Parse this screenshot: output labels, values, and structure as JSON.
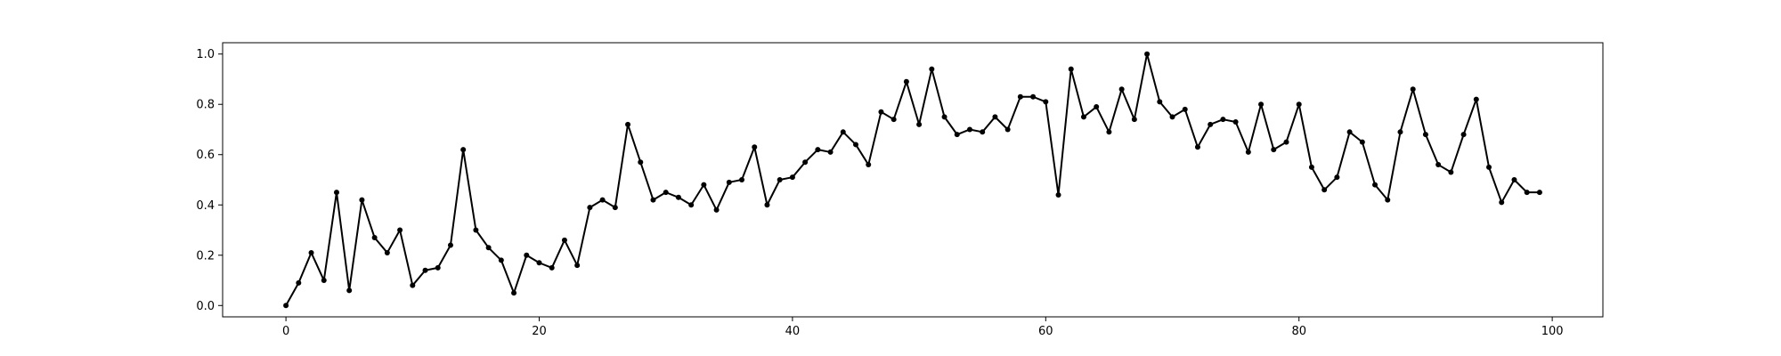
{
  "chart_data": {
    "type": "line",
    "title": "",
    "xlabel": "",
    "ylabel": "",
    "xlim": [
      -5,
      104
    ],
    "ylim": [
      -0.045,
      1.045
    ],
    "grid": false,
    "legend": "none",
    "x_ticks": [
      0,
      20,
      40,
      60,
      80,
      100
    ],
    "x_tick_labels": [
      "0",
      "20",
      "40",
      "60",
      "80",
      "100"
    ],
    "y_ticks": [
      0.0,
      0.2,
      0.4,
      0.6,
      0.8,
      1.0
    ],
    "y_tick_labels": [
      "0.0",
      "0.2",
      "0.4",
      "0.6",
      "0.8",
      "1.0"
    ],
    "series": [
      {
        "color": "#000000",
        "marker": "dot",
        "x": [
          0,
          1,
          2,
          3,
          4,
          5,
          6,
          7,
          8,
          9,
          10,
          11,
          12,
          13,
          14,
          15,
          16,
          17,
          18,
          19,
          20,
          21,
          22,
          23,
          24,
          25,
          26,
          27,
          28,
          29,
          30,
          31,
          32,
          33,
          34,
          35,
          36,
          37,
          38,
          39,
          40,
          41,
          42,
          43,
          44,
          45,
          46,
          47,
          48,
          49,
          50,
          51,
          52,
          53,
          54,
          55,
          56,
          57,
          58,
          59,
          60,
          61,
          62,
          63,
          64,
          65,
          66,
          67,
          68,
          69,
          70,
          71,
          72,
          73,
          74,
          75,
          76,
          77,
          78,
          79,
          80,
          81,
          82,
          83,
          84,
          85,
          86,
          87,
          88,
          89,
          90,
          91,
          92,
          93,
          94,
          95,
          96,
          97,
          98,
          99
        ],
        "values": [
          0.0,
          0.09,
          0.21,
          0.1,
          0.45,
          0.06,
          0.42,
          0.27,
          0.21,
          0.3,
          0.08,
          0.14,
          0.15,
          0.24,
          0.62,
          0.3,
          0.23,
          0.18,
          0.05,
          0.2,
          0.17,
          0.15,
          0.26,
          0.16,
          0.39,
          0.42,
          0.39,
          0.72,
          0.57,
          0.42,
          0.45,
          0.43,
          0.4,
          0.48,
          0.38,
          0.49,
          0.5,
          0.63,
          0.4,
          0.5,
          0.51,
          0.57,
          0.62,
          0.61,
          0.69,
          0.64,
          0.56,
          0.77,
          0.74,
          0.89,
          0.72,
          0.94,
          0.75,
          0.68,
          0.7,
          0.69,
          0.75,
          0.7,
          0.83,
          0.83,
          0.81,
          0.44,
          0.94,
          0.75,
          0.79,
          0.69,
          0.86,
          0.74,
          1.0,
          0.81,
          0.75,
          0.78,
          0.63,
          0.72,
          0.74,
          0.73,
          0.61,
          0.8,
          0.62,
          0.65,
          0.8,
          0.55,
          0.46,
          0.51,
          0.69,
          0.65,
          0.48,
          0.42,
          0.69,
          0.86,
          0.68,
          0.56,
          0.53,
          0.68,
          0.82,
          0.55,
          0.41,
          0.5,
          0.45,
          0.45
        ]
      }
    ]
  }
}
